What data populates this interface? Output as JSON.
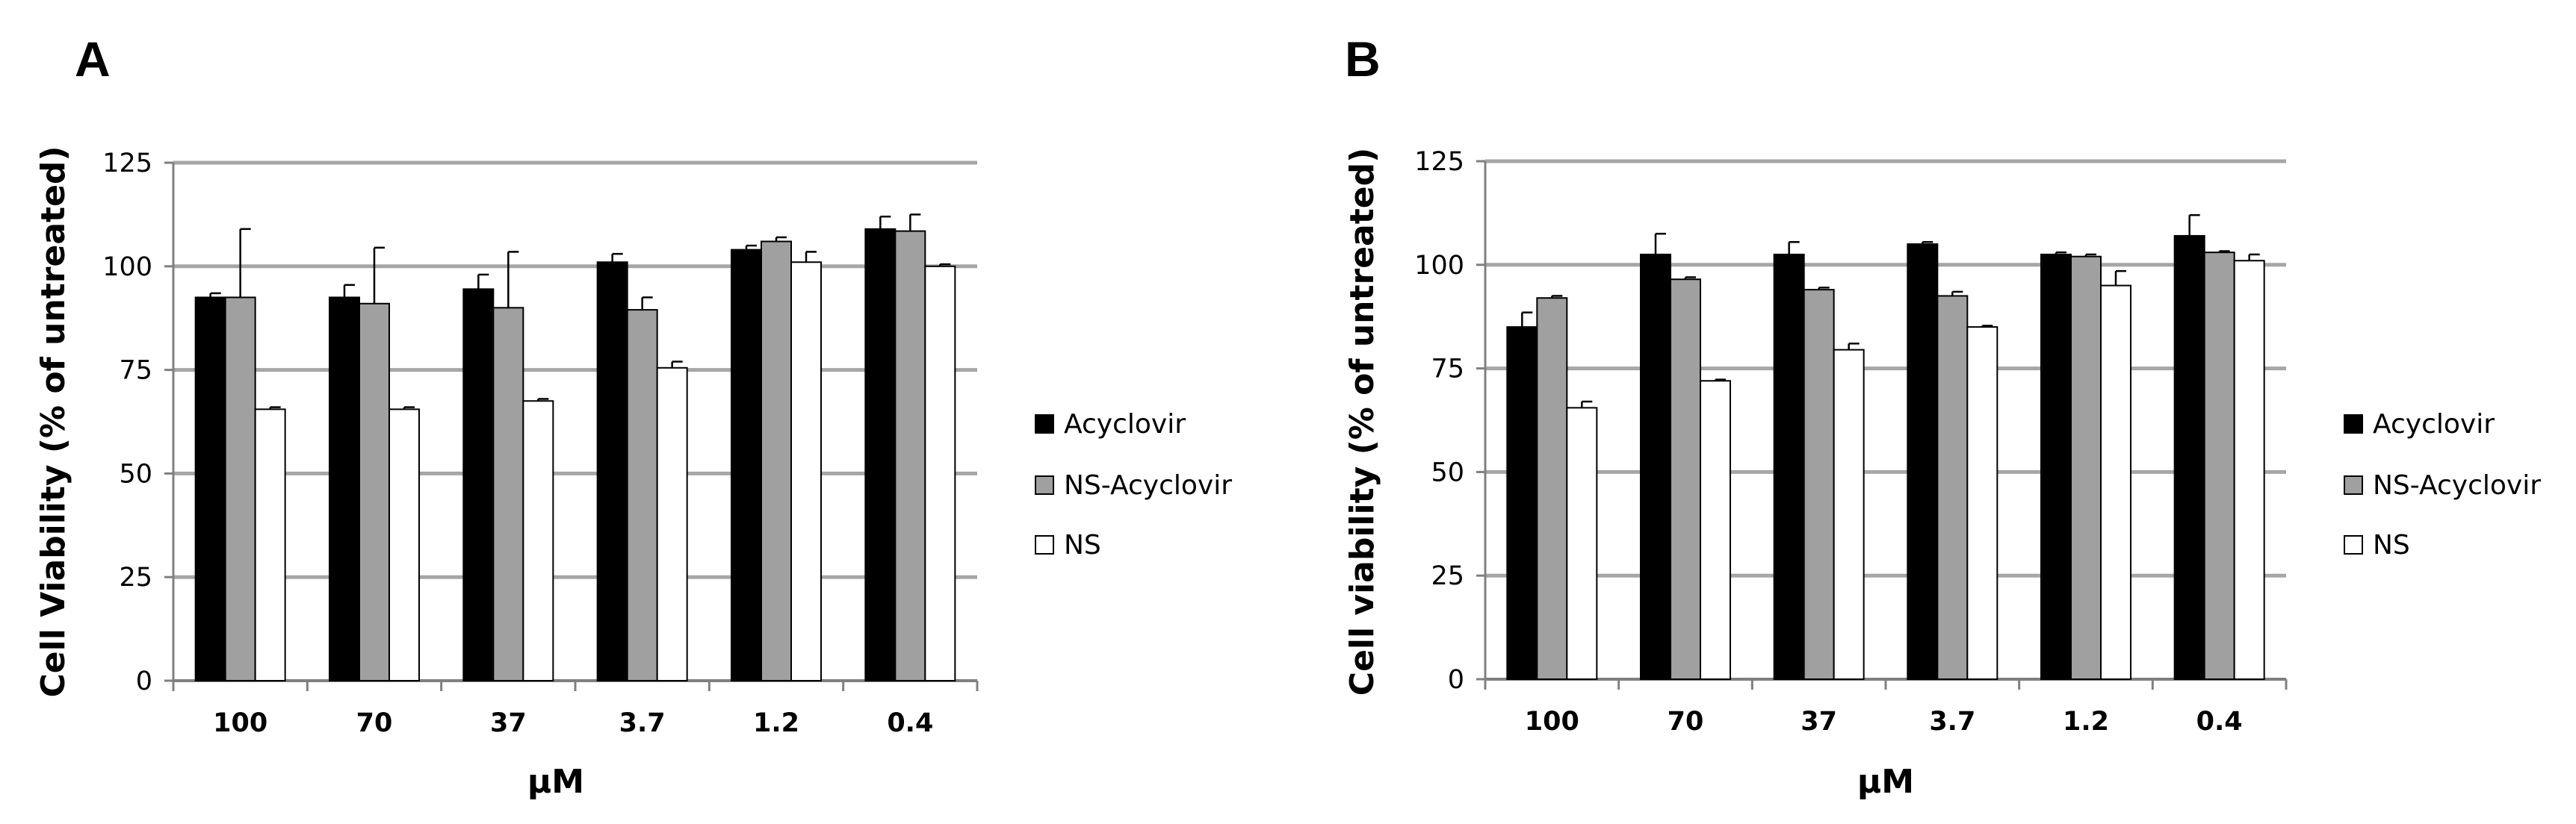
{
  "colors": {
    "Acyclovir": "#000000",
    "NS-Acyclovir": "#a0a0a0",
    "NS": "#ffffff",
    "grid": "#a6a6a6",
    "axis": "#808080"
  },
  "chart_data": [
    {
      "panel": "A",
      "type": "bar",
      "xlabel": "μM",
      "ylabel": "Cell Viability (% of untreated)",
      "ylim": [
        0,
        125
      ],
      "yticks": [
        0,
        25,
        50,
        75,
        100,
        125
      ],
      "grid": true,
      "legend_position": "right",
      "categories": [
        "100",
        "70",
        "37",
        "3.7",
        "1.2",
        "0.4"
      ],
      "series": [
        {
          "name": "Acyclovir",
          "values": [
            92.5,
            92.5,
            94.5,
            101,
            104,
            109
          ],
          "errors": [
            1,
            3,
            3.5,
            2,
            1,
            3
          ]
        },
        {
          "name": "NS-Acyclovir",
          "values": [
            92.5,
            91,
            90,
            89.5,
            106,
            108.5
          ],
          "errors": [
            16.5,
            13.5,
            13.5,
            3,
            1,
            4
          ]
        },
        {
          "name": "NS",
          "values": [
            65.5,
            65.5,
            67.5,
            75.5,
            101,
            100
          ],
          "errors": [
            0.5,
            0.5,
            0.5,
            1.5,
            2.5,
            0.5
          ]
        }
      ]
    },
    {
      "panel": "B",
      "type": "bar",
      "xlabel": "μM",
      "ylabel": "Cell viability (% of untreated)",
      "ylim": [
        0,
        125
      ],
      "yticks": [
        0,
        25,
        50,
        75,
        100,
        125
      ],
      "grid": true,
      "legend_position": "right",
      "categories": [
        "100",
        "70",
        "37",
        "3.7",
        "1.2",
        "0.4"
      ],
      "series": [
        {
          "name": "Acyclovir",
          "values": [
            85,
            102.5,
            102.5,
            105,
            102.5,
            107
          ],
          "errors": [
            3.5,
            5,
            3,
            0.5,
            0.5,
            5
          ]
        },
        {
          "name": "NS-Acyclovir",
          "values": [
            92,
            96.5,
            94,
            92.5,
            102,
            103
          ],
          "errors": [
            0.5,
            0.5,
            0.5,
            1,
            0.5,
            0.3
          ]
        },
        {
          "name": "NS",
          "values": [
            65.5,
            72,
            79.5,
            85,
            95,
            101
          ],
          "errors": [
            1.5,
            0.3,
            1.5,
            0.3,
            3.5,
            1.5
          ]
        }
      ]
    }
  ]
}
